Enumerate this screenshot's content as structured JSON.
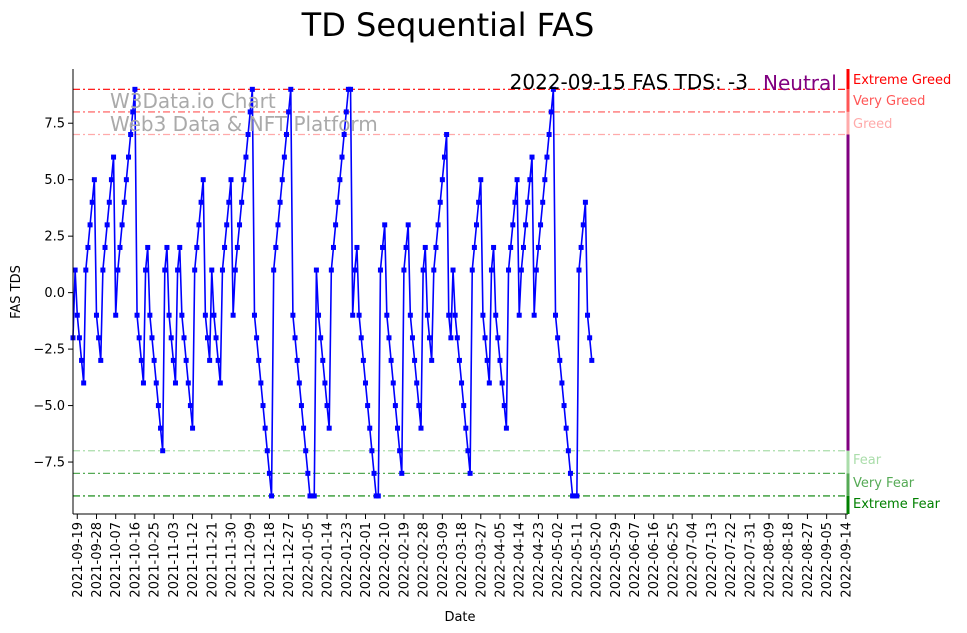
{
  "chart_data": {
    "type": "line",
    "title": "TD Sequential FAS",
    "xlabel": "Date",
    "ylabel": "FAS TDS",
    "ylim": [
      -9.8,
      9.9
    ],
    "x_start": "2021-09-17",
    "x_end": "2022-09-15",
    "x_tick_labels": [
      "2021-09-19",
      "2021-09-28",
      "2021-10-07",
      "2021-10-16",
      "2021-10-25",
      "2021-11-03",
      "2021-11-12",
      "2021-11-21",
      "2021-11-30",
      "2021-12-09",
      "2021-12-18",
      "2021-12-27",
      "2022-01-05",
      "2022-01-14",
      "2022-01-23",
      "2022-02-01",
      "2022-02-10",
      "2022-02-19",
      "2022-02-28",
      "2022-03-09",
      "2022-03-18",
      "2022-03-27",
      "2022-04-05",
      "2022-04-14",
      "2022-04-23",
      "2022-05-02",
      "2022-05-11",
      "2022-05-20",
      "2022-05-29",
      "2022-06-07",
      "2022-06-16",
      "2022-06-25",
      "2022-07-04",
      "2022-07-13",
      "2022-07-22",
      "2022-07-31",
      "2022-08-09",
      "2022-08-18",
      "2022-08-27",
      "2022-09-05",
      "2022-09-14"
    ],
    "y_ticks": [
      -7.5,
      -5.0,
      -2.5,
      0.0,
      2.5,
      5.0,
      7.5
    ],
    "y_tick_labels": [
      "−7.5",
      "−5.0",
      "−2.5",
      "0.0",
      "2.5",
      "5.0",
      "7.5"
    ],
    "reference_lines": [
      {
        "name": "Extreme Greed",
        "value": 9,
        "color": "#ff0000"
      },
      {
        "name": "Very Greed",
        "value": 8,
        "color": "#ff5555"
      },
      {
        "name": "Greed",
        "value": 7,
        "color": "#ffaaaa"
      },
      {
        "name": "Fear",
        "value": -7,
        "color": "#aaddaa"
      },
      {
        "name": "Very Fear",
        "value": -8,
        "color": "#55aa55"
      },
      {
        "name": "Extreme Fear",
        "value": -9,
        "color": "#008000"
      }
    ],
    "series": [
      {
        "name": "FAS TDS",
        "color": "#0000ff",
        "values": [
          -2,
          1,
          -1,
          -2,
          -3,
          -4,
          1,
          2,
          3,
          4,
          5,
          -1,
          -2,
          -3,
          1,
          2,
          3,
          4,
          5,
          6,
          -1,
          1,
          2,
          3,
          4,
          5,
          6,
          7,
          8,
          9,
          -1,
          -2,
          -3,
          -4,
          1,
          2,
          -1,
          -2,
          -3,
          -4,
          -5,
          -6,
          -7,
          1,
          2,
          -1,
          -2,
          -3,
          -4,
          1,
          2,
          -1,
          -2,
          -3,
          -4,
          -5,
          -6,
          1,
          2,
          3,
          4,
          5,
          -1,
          -2,
          -3,
          1,
          -1,
          -2,
          -3,
          -4,
          1,
          2,
          3,
          4,
          5,
          -1,
          1,
          2,
          3,
          4,
          5,
          6,
          7,
          8,
          9,
          -1,
          -2,
          -3,
          -4,
          -5,
          -6,
          -7,
          -8,
          -9,
          1,
          2,
          3,
          4,
          5,
          6,
          7,
          8,
          9,
          -1,
          -2,
          -3,
          -4,
          -5,
          -6,
          -7,
          -8,
          -9,
          -9,
          -9,
          1,
          -1,
          -2,
          -3,
          -4,
          -5,
          -6,
          1,
          2,
          3,
          4,
          5,
          6,
          7,
          8,
          9,
          9,
          -1,
          1,
          2,
          -1,
          -2,
          -3,
          -4,
          -5,
          -6,
          -7,
          -8,
          -9,
          -9,
          1,
          2,
          3,
          -1,
          -2,
          -3,
          -4,
          -5,
          -6,
          -7,
          -8,
          1,
          2,
          3,
          -1,
          -2,
          -3,
          -4,
          -5,
          -6,
          1,
          2,
          -1,
          -2,
          -3,
          1,
          2,
          3,
          4,
          5,
          6,
          7,
          -1,
          -2,
          1,
          -1,
          -2,
          -3,
          -4,
          -5,
          -6,
          -7,
          -8,
          1,
          2,
          3,
          4,
          5,
          -1,
          -2,
          -3,
          -4,
          1,
          2,
          -1,
          -2,
          -3,
          -4,
          -5,
          -6,
          1,
          2,
          3,
          4,
          5,
          -1,
          1,
          2,
          3,
          4,
          5,
          6,
          -1,
          1,
          2,
          3,
          4,
          5,
          6,
          7,
          8,
          9,
          -1,
          -2,
          -3,
          -4,
          -5,
          -6,
          -7,
          -8,
          -9,
          -9,
          -9,
          1,
          2,
          3,
          4,
          -1,
          -2,
          -3
        ]
      }
    ]
  },
  "status": {
    "date_value": "2022-09-15 FAS TDS: -3",
    "mood": "Neutral",
    "mood_color": "#800080"
  },
  "watermark": {
    "line1": "W3Data.io Chart",
    "line2": "Web3 Data & NFT Platform"
  }
}
